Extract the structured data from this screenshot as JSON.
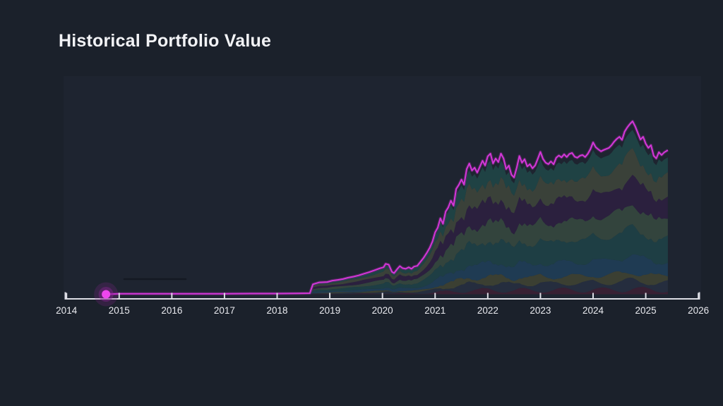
{
  "page": {
    "title": "Historical Portfolio Value",
    "background_color": "#1b212b"
  },
  "chart_data": {
    "type": "area",
    "variant": "stacked-area-with-total-line",
    "title": "Historical Portfolio Value",
    "xlabel": "",
    "ylabel": "",
    "legend": "none",
    "grid": "off",
    "x_ticks": [
      "2014",
      "2015",
      "2016",
      "2017",
      "2018",
      "2019",
      "2020",
      "2021",
      "2022",
      "2023",
      "2024",
      "2025",
      "2026"
    ],
    "x_range": [
      2014,
      2026
    ],
    "y_units": "relative portfolio value (no y-axis shown; peak normalized to 100)",
    "y_range": [
      0,
      100
    ],
    "axis_color": "#dcdde4",
    "tick_label_color": "#e9eaef",
    "plot_bg": "#1e2430",
    "start_marker": {
      "x": 2014.75,
      "y": 0,
      "color": "#ee46ee",
      "halo_color": "#8c2396"
    },
    "stack_top_gap_fraction": 0.05,
    "total_line": {
      "name": "total-portfolio-value",
      "color": "#d337d8",
      "glow_color": "#7c2a86",
      "points": [
        [
          2014.75,
          0
        ],
        [
          2015,
          0.3
        ],
        [
          2015.5,
          0.3
        ],
        [
          2016,
          0.3
        ],
        [
          2016.5,
          0.3
        ],
        [
          2017,
          0.3
        ],
        [
          2017.5,
          0.4
        ],
        [
          2018,
          0.4
        ],
        [
          2018.4,
          0.5
        ],
        [
          2018.62,
          0.6
        ],
        [
          2018.68,
          5.8
        ],
        [
          2018.8,
          6.9
        ],
        [
          2018.95,
          7.1
        ],
        [
          2019.05,
          7.9
        ],
        [
          2019.15,
          8.3
        ],
        [
          2019.25,
          8.8
        ],
        [
          2019.35,
          9.6
        ],
        [
          2019.45,
          10.2
        ],
        [
          2019.55,
          10.9
        ],
        [
          2019.65,
          11.9
        ],
        [
          2019.75,
          12.8
        ],
        [
          2019.85,
          13.9
        ],
        [
          2019.95,
          15
        ],
        [
          2020.02,
          15.6
        ],
        [
          2020.06,
          17.6
        ],
        [
          2020.12,
          17.1
        ],
        [
          2020.18,
          13.0
        ],
        [
          2020.22,
          12.2
        ],
        [
          2020.28,
          14.6
        ],
        [
          2020.33,
          16.3
        ],
        [
          2020.38,
          15.1
        ],
        [
          2020.44,
          14.7
        ],
        [
          2020.5,
          15.6
        ],
        [
          2020.55,
          14.7
        ],
        [
          2020.6,
          16.0
        ],
        [
          2020.66,
          16.4
        ],
        [
          2020.72,
          18.7
        ],
        [
          2020.78,
          21.0
        ],
        [
          2020.84,
          23.8
        ],
        [
          2020.9,
          27.0
        ],
        [
          2020.95,
          30.5
        ],
        [
          2021.0,
          35.8
        ],
        [
          2021.05,
          38.5
        ],
        [
          2021.1,
          43.9
        ],
        [
          2021.15,
          40.7
        ],
        [
          2021.2,
          47.8
        ],
        [
          2021.25,
          50.2
        ],
        [
          2021.3,
          54.1
        ],
        [
          2021.35,
          51.2
        ],
        [
          2021.4,
          60.9
        ],
        [
          2021.45,
          63.2
        ],
        [
          2021.5,
          66.3
        ],
        [
          2021.55,
          63.4
        ],
        [
          2021.6,
          72.4
        ],
        [
          2021.65,
          75.6
        ],
        [
          2021.7,
          71.5
        ],
        [
          2021.75,
          73.2
        ],
        [
          2021.8,
          70.3
        ],
        [
          2021.85,
          73.8
        ],
        [
          2021.9,
          77.2
        ],
        [
          2021.95,
          74.4
        ],
        [
          2022.0,
          79.7
        ],
        [
          2022.05,
          81.3
        ],
        [
          2022.1,
          75.6
        ],
        [
          2022.15,
          78.5
        ],
        [
          2022.2,
          76.4
        ],
        [
          2022.25,
          81.3
        ],
        [
          2022.3,
          78.5
        ],
        [
          2022.35,
          72.4
        ],
        [
          2022.4,
          74.4
        ],
        [
          2022.45,
          69.1
        ],
        [
          2022.5,
          67.5
        ],
        [
          2022.55,
          73.2
        ],
        [
          2022.6,
          79.9
        ],
        [
          2022.65,
          76.0
        ],
        [
          2022.7,
          78.1
        ],
        [
          2022.75,
          73.9
        ],
        [
          2022.8,
          75.2
        ],
        [
          2022.85,
          72.8
        ],
        [
          2022.9,
          74.5
        ],
        [
          2022.95,
          78.3
        ],
        [
          2023.0,
          82.3
        ],
        [
          2023.05,
          78.2
        ],
        [
          2023.1,
          76.0
        ],
        [
          2023.15,
          75.2
        ],
        [
          2023.2,
          76.8
        ],
        [
          2023.25,
          75.1
        ],
        [
          2023.3,
          78.9
        ],
        [
          2023.35,
          80.2
        ],
        [
          2023.4,
          79.1
        ],
        [
          2023.45,
          80.9
        ],
        [
          2023.5,
          79.3
        ],
        [
          2023.55,
          81.1
        ],
        [
          2023.6,
          81.7
        ],
        [
          2023.65,
          79.5
        ],
        [
          2023.7,
          78.9
        ],
        [
          2023.75,
          80.1
        ],
        [
          2023.8,
          80.5
        ],
        [
          2023.85,
          79.3
        ],
        [
          2023.9,
          81.2
        ],
        [
          2023.95,
          83.9
        ],
        [
          2024.0,
          87.8
        ],
        [
          2024.05,
          85.0
        ],
        [
          2024.1,
          83.7
        ],
        [
          2024.15,
          82.6
        ],
        [
          2024.2,
          83.4
        ],
        [
          2024.25,
          84.0
        ],
        [
          2024.3,
          84.6
        ],
        [
          2024.35,
          86.1
        ],
        [
          2024.4,
          88.2
        ],
        [
          2024.45,
          89.8
        ],
        [
          2024.5,
          91.0
        ],
        [
          2024.55,
          89.2
        ],
        [
          2024.6,
          94.0
        ],
        [
          2024.65,
          96.5
        ],
        [
          2024.7,
          98.4
        ],
        [
          2024.75,
          100
        ],
        [
          2024.8,
          97.0
        ],
        [
          2024.85,
          93.2
        ],
        [
          2024.9,
          89.4
        ],
        [
          2024.95,
          91.0
        ],
        [
          2025.0,
          87.0
        ],
        [
          2025.05,
          84.6
        ],
        [
          2025.1,
          86.2
        ],
        [
          2025.15,
          80.1
        ],
        [
          2025.2,
          78.5
        ],
        [
          2025.25,
          82.1
        ],
        [
          2025.3,
          80.5
        ],
        [
          2025.35,
          82.0
        ],
        [
          2025.42,
          83.3
        ]
      ]
    },
    "layers_bottom_to_top": [
      {
        "name": "layer-1",
        "color": "#3b2134",
        "fraction_of_total": 0.03
      },
      {
        "name": "layer-2",
        "color": "#262f40",
        "fraction_of_total": 0.05
      },
      {
        "name": "layer-3",
        "color": "#3e4233",
        "fraction_of_total": 0.05
      },
      {
        "name": "layer-4",
        "color": "#1f3e57",
        "fraction_of_total": 0.1
      },
      {
        "name": "layer-5",
        "color": "#1e4147",
        "fraction_of_total": 0.16
      },
      {
        "name": "layer-6",
        "color": "#35483f",
        "fraction_of_total": 0.14
      },
      {
        "name": "layer-7",
        "color": "#2d2140",
        "fraction_of_total": 0.16
      },
      {
        "name": "layer-8",
        "color": "#3d443b",
        "fraction_of_total": 0.14
      },
      {
        "name": "layer-9",
        "color": "#1f4547",
        "fraction_of_total": 0.12
      }
    ]
  }
}
